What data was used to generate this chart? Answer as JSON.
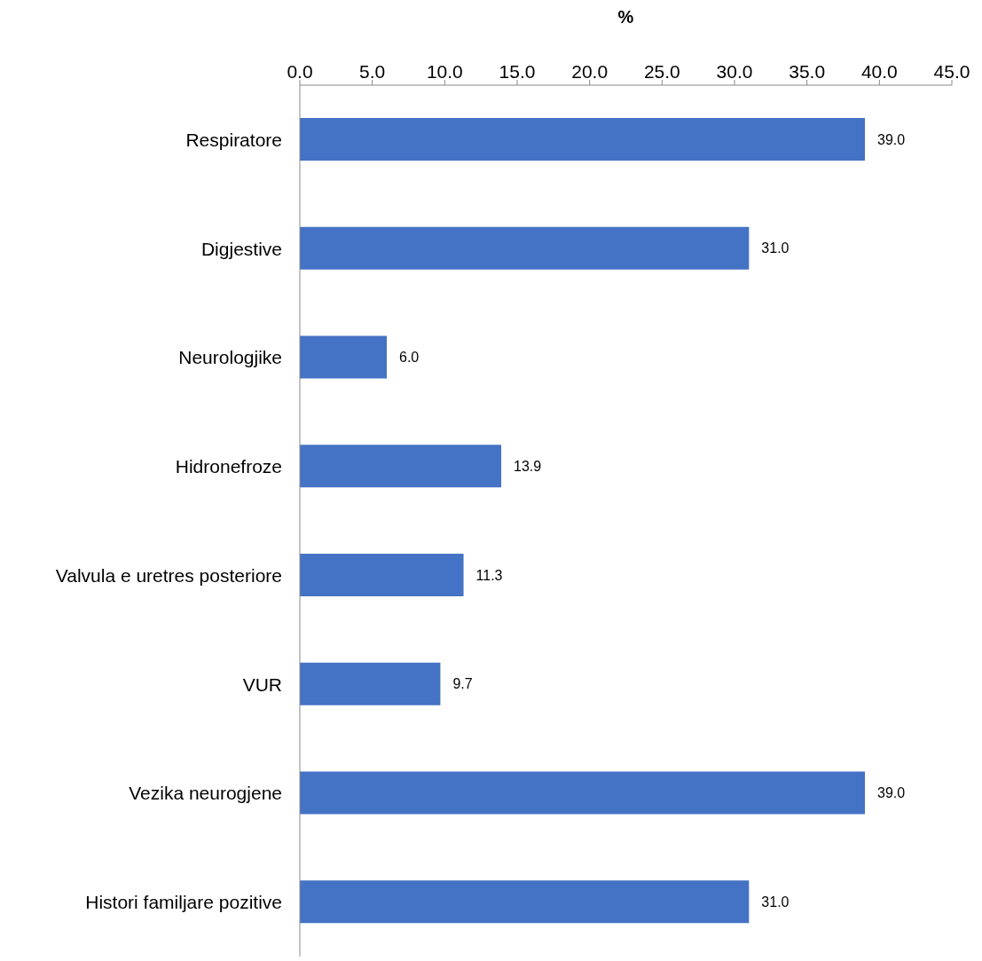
{
  "chart_data": {
    "type": "bar",
    "orientation": "horizontal",
    "xlabel": "%",
    "categories": [
      "Respiratore",
      "Digjestive",
      "Neurologjike",
      "Hidronefroze",
      "Valvula e uretres posteriore",
      "VUR",
      "Vezika neurogjene",
      "Histori familjare pozitive"
    ],
    "values": [
      39.0,
      31.0,
      6.0,
      13.9,
      11.3,
      9.7,
      39.0,
      31.0
    ],
    "value_labels": [
      "39.0",
      "31.0",
      "6.0",
      "13.9",
      "11.3",
      "9.7",
      "39.0",
      "31.0"
    ],
    "color": "#4472c4",
    "xlim": [
      0,
      45
    ],
    "xticks": [
      {
        "value": 0,
        "label": "0.0"
      },
      {
        "value": 5,
        "label": "5.0"
      },
      {
        "value": 10,
        "label": "10.0"
      },
      {
        "value": 15,
        "label": "15.0"
      },
      {
        "value": 20,
        "label": "20.0"
      },
      {
        "value": 25,
        "label": "25.0"
      },
      {
        "value": 30,
        "label": "30.0"
      },
      {
        "value": 35,
        "label": "35.0"
      },
      {
        "value": 40,
        "label": "40.0"
      },
      {
        "value": 45,
        "label": "45.0"
      }
    ],
    "grid": false,
    "legend": false
  }
}
